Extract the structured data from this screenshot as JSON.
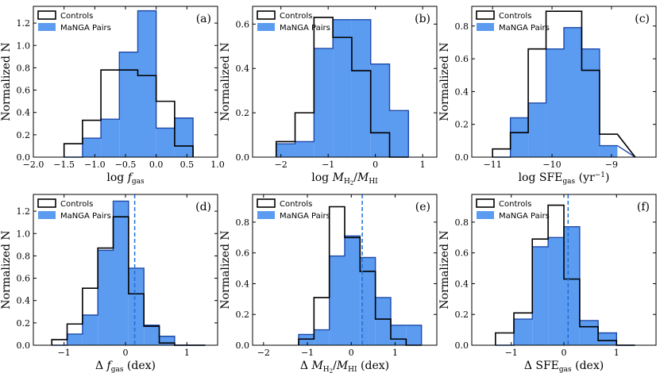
{
  "legend": {
    "controls": "Controls",
    "pairs": "MaNGA Pairs"
  },
  "colors": {
    "pairs_fill": "#5b9bf0",
    "pairs_edge": "#1f4aa8",
    "median_line": "#1f6fdc",
    "controls_edge": "#000000"
  },
  "chart_data": [
    {
      "type": "bar",
      "panel": "(a)",
      "xlabel": "log f_gas",
      "xlabel_main": "log ",
      "xlabel_var": "f",
      "xlabel_sub": "gas",
      "ylabel": "Normalized N",
      "xlim": [
        -2.0,
        1.0
      ],
      "ylim": [
        0,
        1.35
      ],
      "xticks": [
        -2.0,
        -1.5,
        -1.0,
        -0.5,
        0.0,
        0.5,
        1.0
      ],
      "xtick_labels": [
        "−2.0",
        "−1.5",
        "−1.0",
        "−0.5",
        "0.0",
        "0.5",
        "1.0"
      ],
      "yticks": [
        0,
        0.2,
        0.4,
        0.6,
        0.8,
        1.0,
        1.2
      ],
      "ytick_labels": [
        "0.0",
        "0.2",
        "0.4",
        "0.6",
        "0.8",
        "1.0",
        "1.2"
      ],
      "bin_edges": [
        -1.5,
        -1.2,
        -0.9,
        -0.6,
        -0.3,
        0.0,
        0.3,
        0.6
      ],
      "series": [
        {
          "name": "Controls",
          "values": [
            0.12,
            0.33,
            0.78,
            0.78,
            0.73,
            0.5,
            0.1
          ]
        },
        {
          "name": "MaNGA Pairs",
          "values": [
            0.0,
            0.17,
            0.34,
            0.94,
            1.31,
            0.26,
            0.35
          ]
        }
      ]
    },
    {
      "type": "bar",
      "panel": "(b)",
      "xlabel": "log M_H2/M_HI",
      "ylabel": "Normalized N",
      "xlim": [
        -2.6,
        1.3
      ],
      "ylim": [
        0,
        0.68
      ],
      "xticks": [
        -2,
        -1,
        0,
        1
      ],
      "xtick_labels": [
        "−2",
        "−1",
        "0",
        "1"
      ],
      "yticks": [
        0,
        0.2,
        0.4,
        0.6
      ],
      "ytick_labels": [
        "0.0",
        "0.2",
        "0.4",
        "0.6"
      ],
      "bin_edges": [
        -2.1,
        -1.7,
        -1.3,
        -0.9,
        -0.5,
        -0.1,
        0.3,
        0.7
      ],
      "series": [
        {
          "name": "Controls",
          "values": [
            0.07,
            0.2,
            0.63,
            0.54,
            0.39,
            0.11,
            0.0
          ]
        },
        {
          "name": "MaNGA Pairs",
          "values": [
            0.06,
            0.07,
            0.49,
            0.62,
            0.62,
            0.42,
            0.21
          ]
        }
      ]
    },
    {
      "type": "bar",
      "panel": "(c)",
      "xlabel": "log SFE_gas (yr^-1)",
      "ylabel": "Normalized N",
      "xlim": [
        -11.35,
        -8.25
      ],
      "ylim": [
        0,
        0.92
      ],
      "xticks": [
        -11,
        -10,
        -9
      ],
      "xtick_labels": [
        "−11",
        "−10",
        "−9"
      ],
      "yticks": [
        0,
        0.2,
        0.4,
        0.6,
        0.8
      ],
      "ytick_labels": [
        "0.0",
        "0.2",
        "0.4",
        "0.6",
        "0.8"
      ],
      "bin_edges": [
        -11.0,
        -10.7,
        -10.4,
        -10.1,
        -9.8,
        -9.5,
        -9.2,
        -8.9,
        -8.6
      ],
      "series": [
        {
          "name": "Controls",
          "values": [
            0.05,
            0.15,
            0.66,
            0.89,
            0.89,
            0.53,
            0.14
          ]
        },
        {
          "name": "MaNGA Pairs",
          "values": [
            0.0,
            0.24,
            0.33,
            0.66,
            0.79,
            0.66,
            0.07
          ]
        }
      ]
    },
    {
      "type": "bar",
      "panel": "(d)",
      "xlabel": "Δ f_gas (dex)",
      "ylabel": "Normalized N",
      "xlim": [
        -1.5,
        1.5
      ],
      "ylim": [
        0,
        1.35
      ],
      "xticks": [
        -1,
        0,
        1
      ],
      "xtick_labels": [
        "−1",
        "0",
        "1"
      ],
      "yticks": [
        0,
        0.2,
        0.4,
        0.6,
        0.8,
        1.0,
        1.2
      ],
      "ytick_labels": [
        "0.0",
        "0.2",
        "0.4",
        "0.6",
        "0.8",
        "1.0",
        "1.2"
      ],
      "bin_edges": [
        -1.2,
        -0.95,
        -0.7,
        -0.45,
        -0.2,
        0.05,
        0.3,
        0.55,
        0.8,
        1.05,
        1.3
      ],
      "series": [
        {
          "name": "Controls",
          "values": [
            0.05,
            0.19,
            0.51,
            0.87,
            1.15,
            0.46,
            0.17,
            0.02,
            0.0
          ]
        },
        {
          "name": "MaNGA Pairs",
          "values": [
            0.0,
            0.1,
            0.27,
            0.85,
            1.29,
            0.69,
            0.18,
            0.08,
            0.0
          ]
        }
      ],
      "median": 0.15
    },
    {
      "type": "bar",
      "panel": "(e)",
      "xlabel": "Δ M_H2/M_HI (dex)",
      "ylabel": "Normalized N",
      "xlim": [
        -2.25,
        1.95
      ],
      "ylim": [
        0,
        0.98
      ],
      "xticks": [
        -2,
        -1,
        0,
        1
      ],
      "xtick_labels": [
        "−2",
        "−1",
        "0",
        "1"
      ],
      "yticks": [
        0,
        0.2,
        0.4,
        0.6,
        0.8
      ],
      "ytick_labels": [
        "0.0",
        "0.2",
        "0.4",
        "0.6",
        "0.8"
      ],
      "bin_edges": [
        -1.2,
        -0.85,
        -0.5,
        -0.15,
        0.2,
        0.55,
        0.9,
        1.25,
        1.6
      ],
      "series": [
        {
          "name": "Controls",
          "values": [
            0.04,
            0.31,
            0.9,
            0.7,
            0.48,
            0.17,
            0.04,
            0.0
          ]
        },
        {
          "name": "MaNGA Pairs",
          "values": [
            0.07,
            0.1,
            0.58,
            0.71,
            0.57,
            0.31,
            0.13,
            0.13
          ]
        }
      ],
      "median": 0.25
    },
    {
      "type": "bar",
      "panel": "(f)",
      "xlabel": "Δ SFE_gas (dex)",
      "ylabel": "Normalized N",
      "xlim": [
        -1.75,
        1.75
      ],
      "ylim": [
        0,
        0.98
      ],
      "xticks": [
        -1,
        0,
        1
      ],
      "xtick_labels": [
        "−1",
        "0",
        "1"
      ],
      "yticks": [
        0,
        0.2,
        0.4,
        0.6,
        0.8
      ],
      "ytick_labels": [
        "0.0",
        "0.2",
        "0.4",
        "0.6",
        "0.8"
      ],
      "bin_edges": [
        -1.3,
        -0.95,
        -0.6,
        -0.3,
        0.0,
        0.3,
        0.65,
        1.0,
        1.35
      ],
      "series": [
        {
          "name": "Controls",
          "values": [
            0.08,
            0.21,
            0.69,
            0.91,
            0.43,
            0.12,
            0.03,
            0.0
          ]
        },
        {
          "name": "MaNGA Pairs",
          "values": [
            0.0,
            0.17,
            0.64,
            0.7,
            0.77,
            0.16,
            0.08,
            0.0
          ]
        }
      ],
      "median": 0.08
    }
  ]
}
